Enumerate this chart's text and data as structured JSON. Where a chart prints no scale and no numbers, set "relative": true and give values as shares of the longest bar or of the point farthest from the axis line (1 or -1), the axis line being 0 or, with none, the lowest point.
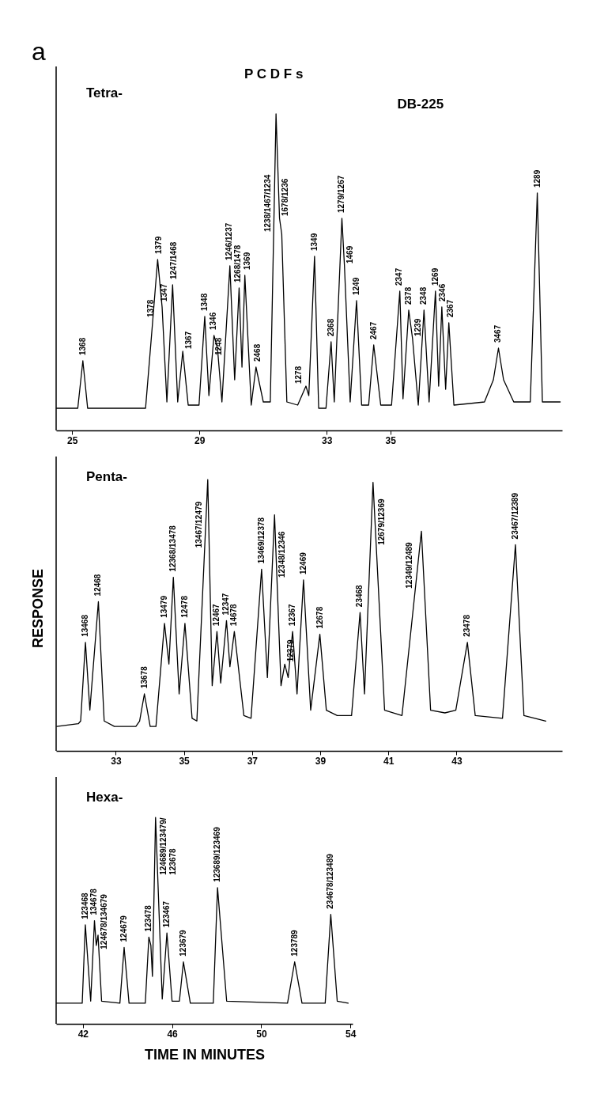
{
  "chart_data": [
    {
      "type": "line",
      "title": "Tetra-",
      "relative": true,
      "grid": false,
      "marker": "none",
      "line_style": "solid",
      "xlim": [
        24.5,
        40.4
      ],
      "xticks": [
        25,
        29,
        33,
        35
      ],
      "x": [
        24.51,
        25.18,
        25.34,
        25.49,
        26.3,
        27.31,
        27.53,
        27.69,
        27.83,
        27.98,
        28.16,
        28.32,
        28.48,
        28.65,
        28.99,
        29.17,
        29.3,
        29.46,
        29.57,
        29.71,
        29.96,
        30.11,
        30.25,
        30.34,
        30.43,
        30.63,
        30.78,
        31.01,
        31.23,
        31.41,
        31.52,
        31.59,
        31.75,
        32.09,
        32.35,
        32.44,
        32.62,
        32.75,
        32.98,
        33.14,
        33.24,
        33.48,
        33.56,
        33.74,
        33.94,
        34.1,
        34.32,
        34.48,
        34.7,
        35.04,
        35.3,
        35.4,
        35.58,
        35.7,
        35.88,
        36.06,
        36.22,
        36.42,
        36.52,
        36.62,
        36.74,
        36.84,
        37.0,
        37.96,
        38.24,
        38.4,
        38.56,
        38.88,
        39.4,
        39.62,
        39.78,
        40.34
      ],
      "series": [
        {
          "color": "#000000",
          "values": [
            0.07,
            0.07,
            0.22,
            0.07,
            0.07,
            0.07,
            0.34,
            0.54,
            0.39,
            0.09,
            0.46,
            0.09,
            0.25,
            0.08,
            0.08,
            0.36,
            0.11,
            0.3,
            0.26,
            0.09,
            0.52,
            0.16,
            0.45,
            0.2,
            0.49,
            0.08,
            0.2,
            0.09,
            0.09,
            1.0,
            0.67,
            0.62,
            0.09,
            0.08,
            0.14,
            0.11,
            0.55,
            0.07,
            0.07,
            0.28,
            0.09,
            0.67,
            0.52,
            0.09,
            0.41,
            0.08,
            0.08,
            0.27,
            0.08,
            0.08,
            0.44,
            0.1,
            0.38,
            0.29,
            0.08,
            0.38,
            0.09,
            0.44,
            0.14,
            0.39,
            0.13,
            0.34,
            0.08,
            0.09,
            0.16,
            0.26,
            0.16,
            0.09,
            0.09,
            0.75,
            0.09,
            0.09
          ]
        }
      ],
      "annotations": [
        "a",
        "P C D F s",
        "DB-225",
        {
          "text": "1368",
          "x": 25.34,
          "y": 0.22
        },
        {
          "text": "1378",
          "x": 27.47,
          "y": 0.34
        },
        {
          "text": "1379",
          "x": 27.72,
          "y": 0.54
        },
        {
          "text": "1347",
          "x": 27.91,
          "y": 0.39
        },
        {
          "text": "1247/1468",
          "x": 28.21,
          "y": 0.46
        },
        {
          "text": "1367",
          "x": 28.5,
          "y": 0.25
        },
        {
          "text": "1348",
          "x": 29.17,
          "y": 0.36
        },
        {
          "text": "1346",
          "x": 29.44,
          "y": 0.3
        },
        {
          "text": "1248",
          "x": 29.62,
          "y": 0.22
        },
        {
          "text": "1246/1237",
          "x": 29.93,
          "y": 0.52
        },
        {
          "text": "1268/1478",
          "x": 30.22,
          "y": 0.45
        },
        {
          "text": "1369",
          "x": 30.52,
          "y": 0.49
        },
        {
          "text": "2468",
          "x": 30.83,
          "y": 0.2
        },
        {
          "text": "1238/1467/1234",
          "x": 31.335,
          "y": 0.62
        },
        {
          "text": "1678/1236",
          "x": 31.52,
          "y": 0.67
        },
        {
          "text": "1278",
          "x": 32.31,
          "y": 0.14
        },
        {
          "text": "1349",
          "x": 32.62,
          "y": 0.55
        },
        {
          "text": "2368",
          "x": 33.14,
          "y": 0.28
        },
        {
          "text": "1279/1267",
          "x": 33.48,
          "y": 0.67
        },
        {
          "text": "1469",
          "x": 33.56,
          "y": 0.52
        },
        {
          "text": "1249",
          "x": 33.94,
          "y": 0.41
        },
        {
          "text": "2467",
          "x": 34.48,
          "y": 0.27
        },
        {
          "text": "2347",
          "x": 35.28,
          "y": 0.44
        },
        {
          "text": "2378",
          "x": 35.58,
          "y": 0.38
        },
        {
          "text": "1239",
          "x": 35.7,
          "y": 0.29
        },
        {
          "text": "2348",
          "x": 36.06,
          "y": 0.38
        },
        {
          "text": "1269",
          "x": 36.43,
          "y": 0.44
        },
        {
          "text": "2346",
          "x": 36.66,
          "y": 0.39
        },
        {
          "text": "2367",
          "x": 36.9,
          "y": 0.34
        },
        {
          "text": "3467",
          "x": 38.4,
          "y": 0.26
        },
        {
          "text": "1289",
          "x": 39.62,
          "y": 0.75
        }
      ]
    },
    {
      "type": "line",
      "title": "Penta-",
      "ylabel": "RESPONSE",
      "relative": true,
      "grid": false,
      "marker": "none",
      "line_style": "solid",
      "xlim": [
        31.25,
        46.1
      ],
      "xticks": [
        33,
        35,
        37,
        39,
        41,
        43
      ],
      "x": [
        31.27,
        31.9,
        31.97,
        32.11,
        32.24,
        32.49,
        32.66,
        32.96,
        33.59,
        33.7,
        33.84,
        34.01,
        34.18,
        34.43,
        34.56,
        34.69,
        34.86,
        35.03,
        35.24,
        35.38,
        35.7,
        35.83,
        35.97,
        36.08,
        36.25,
        36.35,
        36.48,
        36.76,
        36.97,
        37.28,
        37.45,
        37.66,
        37.85,
        37.96,
        38.06,
        38.19,
        38.32,
        38.51,
        38.72,
        38.99,
        39.18,
        39.5,
        39.92,
        40.17,
        40.3,
        40.55,
        40.89,
        41.4,
        41.97,
        42.24,
        42.66,
        42.98,
        43.32,
        43.55,
        44.35,
        44.73,
        44.98,
        45.62
      ],
      "series": [
        {
          "color": "#000000",
          "values": [
            0.09,
            0.1,
            0.11,
            0.4,
            0.15,
            0.55,
            0.11,
            0.09,
            0.09,
            0.11,
            0.21,
            0.09,
            0.09,
            0.47,
            0.32,
            0.64,
            0.21,
            0.47,
            0.12,
            0.11,
            1.0,
            0.24,
            0.44,
            0.25,
            0.48,
            0.31,
            0.44,
            0.13,
            0.12,
            0.67,
            0.27,
            0.87,
            0.24,
            0.32,
            0.27,
            0.44,
            0.21,
            0.63,
            0.15,
            0.43,
            0.15,
            0.13,
            0.13,
            0.51,
            0.21,
            0.99,
            0.15,
            0.13,
            0.81,
            0.15,
            0.14,
            0.15,
            0.4,
            0.13,
            0.12,
            0.76,
            0.13,
            0.11
          ]
        }
      ],
      "annotations": [
        {
          "text": "13468",
          "x": 32.11,
          "y": 0.4
        },
        {
          "text": "12468",
          "x": 32.49,
          "y": 0.55
        },
        {
          "text": "13678",
          "x": 33.84,
          "y": 0.21
        },
        {
          "text": "13479",
          "x": 34.43,
          "y": 0.47
        },
        {
          "text": "12368/13478",
          "x": 34.69,
          "y": 0.64
        },
        {
          "text": "12478",
          "x": 35.03,
          "y": 0.47
        },
        {
          "text": "13467/12479",
          "x": 35.61,
          "y": 0.74
        },
        {
          "text": "12467",
          "x": 35.97,
          "y": 0.44
        },
        {
          "text": "12347",
          "x": 36.25,
          "y": 0.48
        },
        {
          "text": "14678",
          "x": 36.48,
          "y": 0.44
        },
        {
          "text": "13469/12378",
          "x": 37.28,
          "y": 0.67
        },
        {
          "text": "12348/12346",
          "x": 37.73,
          "y": 0.63
        },
        {
          "text": "12379",
          "x": 37.98,
          "y": 0.32
        },
        {
          "text": "12367",
          "x": 38.19,
          "y": 0.44
        },
        {
          "text": "12469",
          "x": 38.51,
          "y": 0.63
        },
        {
          "text": "12678",
          "x": 38.99,
          "y": 0.43
        },
        {
          "text": "23468",
          "x": 40.17,
          "y": 0.51
        },
        {
          "text": "12679/12369",
          "x": 40.65,
          "y": 0.75
        },
        {
          "text": "12349/12489",
          "x": 41.79,
          "y": 0.59
        },
        {
          "text": "23478",
          "x": 43.32,
          "y": 0.4
        },
        {
          "text": "23467/12389",
          "x": 44.73,
          "y": 0.76
        }
      ]
    },
    {
      "type": "line",
      "title": "Hexa-",
      "xlabel": "TIME IN MINUTES",
      "relative": true,
      "grid": false,
      "marker": "none",
      "line_style": "solid",
      "xlim": [
        40.8,
        54.1
      ],
      "xticks": [
        42,
        46,
        50,
        54
      ],
      "x": [
        40.82,
        41.97,
        42.11,
        42.35,
        42.52,
        42.6,
        42.68,
        42.84,
        43.66,
        43.85,
        44.07,
        44.8,
        44.96,
        45.05,
        45.12,
        45.26,
        45.56,
        45.77,
        46.0,
        46.33,
        46.51,
        46.82,
        47.85,
        48.04,
        48.45,
        51.18,
        51.5,
        51.83,
        52.87,
        53.12,
        53.41,
        53.9
      ],
      "series": [
        {
          "color": "#000000",
          "values": [
            0.1,
            0.1,
            0.48,
            0.11,
            0.5,
            0.38,
            0.43,
            0.11,
            0.1,
            0.37,
            0.1,
            0.1,
            0.42,
            0.38,
            0.23,
            1.0,
            0.12,
            0.44,
            0.11,
            0.11,
            0.3,
            0.1,
            0.1,
            0.66,
            0.11,
            0.1,
            0.3,
            0.1,
            0.1,
            0.53,
            0.11,
            0.1
          ]
        }
      ],
      "annotations": [
        {
          "text": "123468",
          "x": 42.11,
          "y": 0.48
        },
        {
          "text": "134678",
          "x": 42.52,
          "y": 0.5
        },
        {
          "text": "124678/134679",
          "x": 42.72,
          "y": 0.35
        },
        {
          "text": "124679",
          "x": 43.85,
          "y": 0.37
        },
        {
          "text": "123478",
          "x": 44.96,
          "y": 0.42
        },
        {
          "text": "124689/123479/\n123678",
          "x": 45.36,
          "y": 0.71
        },
        {
          "text": "123467",
          "x": 45.77,
          "y": 0.44
        },
        {
          "text": "123679",
          "x": 46.51,
          "y": 0.3
        },
        {
          "text": "123689/123469",
          "x": 48.04,
          "y": 0.66
        },
        {
          "text": "123789",
          "x": 51.5,
          "y": 0.3
        },
        {
          "text": "234678/123489",
          "x": 53.12,
          "y": 0.53
        }
      ]
    }
  ]
}
